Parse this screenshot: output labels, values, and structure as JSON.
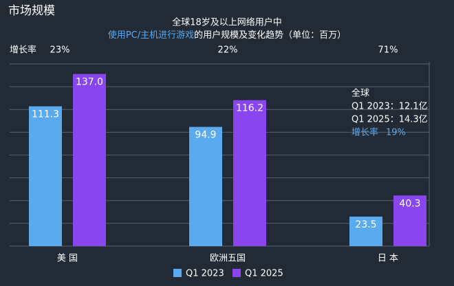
{
  "chart_data": {
    "type": "bar",
    "title": "市场规模",
    "subtitle_line1": "全球18岁及以上网络用户中",
    "subtitle_highlight": "使用PC/主机进行游戏",
    "subtitle_rest": "的用户规模及变化趋势（单位：百万）",
    "categories": [
      "美 国",
      "欧洲五国",
      "日 本"
    ],
    "series": [
      {
        "name": "Q1 2023",
        "color": "#5aaaf0",
        "values": [
          111.3,
          94.9,
          23.5
        ],
        "value_labels": [
          "111.3",
          "94.9",
          "23.5"
        ]
      },
      {
        "name": "Q1 2025",
        "color": "#8a46ee",
        "values": [
          137.0,
          116.2,
          40.3
        ],
        "value_labels": [
          "137.0",
          "116.2",
          "40.3"
        ]
      }
    ],
    "growth": {
      "label": "增长率",
      "values": [
        23,
        22,
        71
      ],
      "value_labels": [
        "23%",
        "22%",
        "71%"
      ]
    },
    "annotation": {
      "lines": [
        "全球",
        "Q1 2023：12.1亿",
        "Q1 2025：14.3亿"
      ],
      "growth_label": "增长率",
      "growth_value": 19,
      "growth_value_label": "19%"
    },
    "ylim": [
      0,
      145
    ],
    "grid": true
  }
}
